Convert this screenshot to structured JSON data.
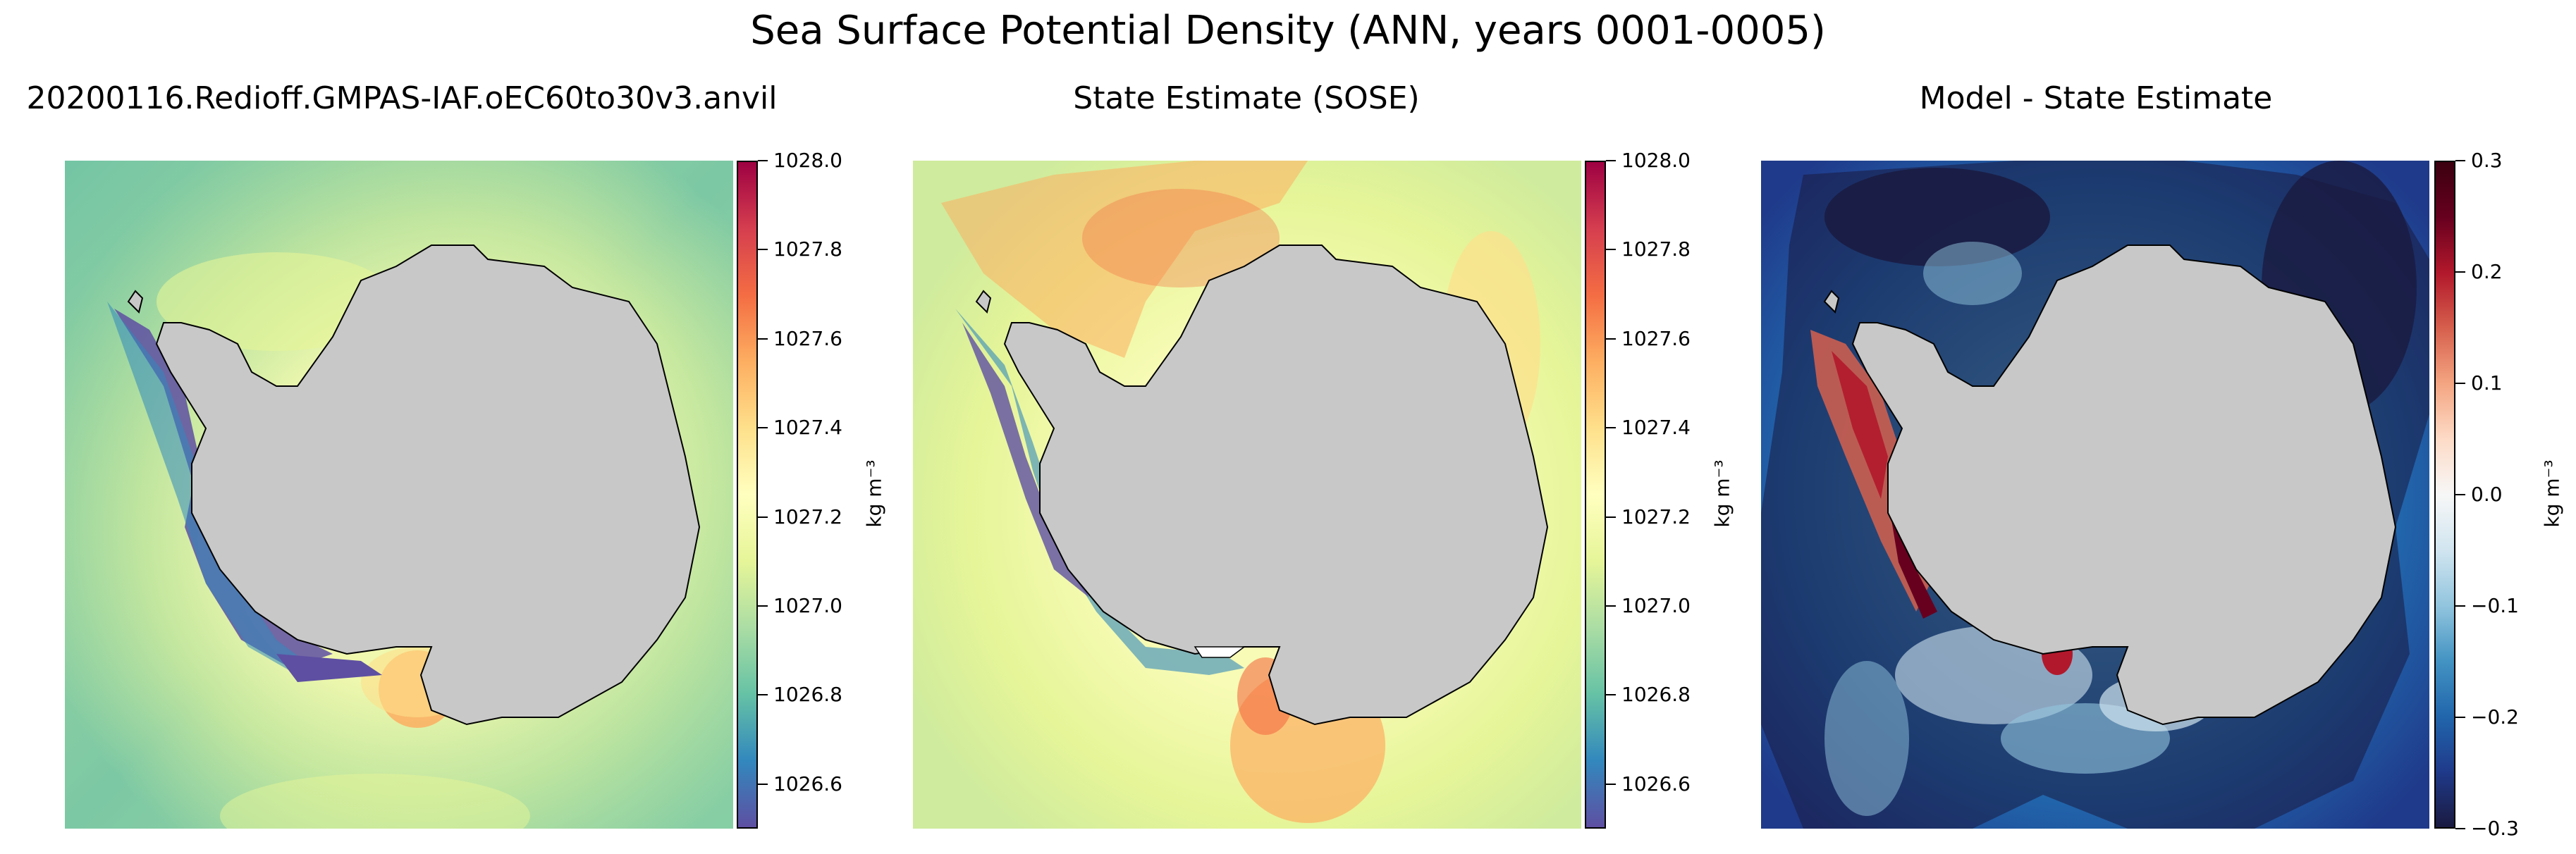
{
  "figure": {
    "title": "Sea Surface Potential Density (ANN, years 0001-0005)"
  },
  "panels": [
    {
      "title": "20200116.Redioff.GMPAS-IAF.oEC60to30v3.anvil",
      "colormap": "Spectral_r",
      "colorbar": {
        "ticks": [
          "1026.6",
          "1026.8",
          "1027.0",
          "1027.2",
          "1027.4",
          "1027.6",
          "1027.8",
          "1028.0"
        ],
        "vmin": 1026.5,
        "vmax": 1028.0,
        "unit": "kg m⁻³",
        "colors": [
          "#5e4fa2",
          "#3288bd",
          "#66c2a5",
          "#abdda4",
          "#e6f598",
          "#ffffbf",
          "#fee08b",
          "#fdae61",
          "#f46d43",
          "#d53e4f",
          "#9e0142"
        ]
      }
    },
    {
      "title": "State Estimate (SOSE)",
      "colormap": "Spectral_r",
      "colorbar": {
        "ticks": [
          "1026.6",
          "1026.8",
          "1027.0",
          "1027.2",
          "1027.4",
          "1027.6",
          "1027.8",
          "1028.0"
        ],
        "vmin": 1026.5,
        "vmax": 1028.0,
        "unit": "kg m⁻³",
        "colors": [
          "#5e4fa2",
          "#3288bd",
          "#66c2a5",
          "#abdda4",
          "#e6f598",
          "#ffffbf",
          "#fee08b",
          "#fdae61",
          "#f46d43",
          "#d53e4f",
          "#9e0142"
        ]
      }
    },
    {
      "title": "Model - State Estimate",
      "colormap": "RdBu_r",
      "colorbar": {
        "ticks": [
          "−0.3",
          "−0.2",
          "−0.1",
          "0.0",
          "0.1",
          "0.2",
          "0.3"
        ],
        "vmin": -0.3,
        "vmax": 0.3,
        "unit": "kg m⁻³",
        "colors": [
          "#1a1a40",
          "#1f3a8a",
          "#2166ac",
          "#4393c3",
          "#92c5de",
          "#d1e5f0",
          "#f7f7f7",
          "#fddbc7",
          "#f4a582",
          "#d6604d",
          "#b2182b",
          "#67001f",
          "#3b0010"
        ]
      }
    }
  ],
  "land_color": "#c8c8c8"
}
